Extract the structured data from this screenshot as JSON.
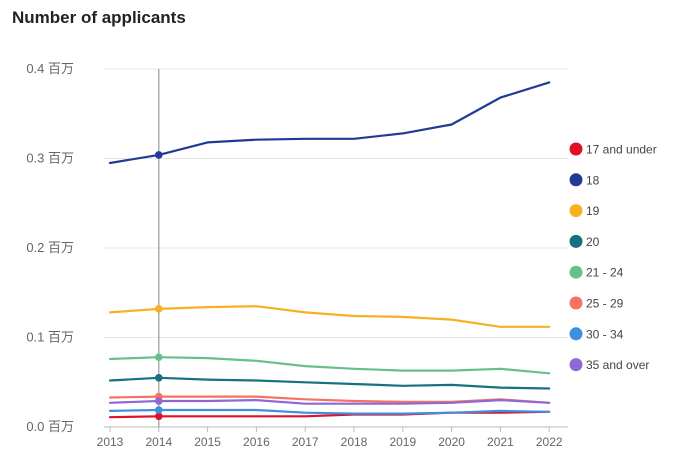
{
  "chart_data": {
    "type": "line",
    "title": "Number of applicants",
    "xlabel": "",
    "ylabel": "",
    "x": [
      "2013",
      "2014",
      "2015",
      "2016",
      "2017",
      "2018",
      "2019",
      "2020",
      "2021",
      "2022"
    ],
    "ylim": [
      0,
      0.4
    ],
    "yticks": [
      {
        "value": 0.0,
        "label": "0.0 百万"
      },
      {
        "value": 0.1,
        "label": "0.1 百万"
      },
      {
        "value": 0.2,
        "label": "0.2 百万"
      },
      {
        "value": 0.3,
        "label": "0.3 百万"
      },
      {
        "value": 0.4,
        "label": "0.4 百万"
      }
    ],
    "grid": "horizontal",
    "legend": "right",
    "hover_index": 1,
    "series": [
      {
        "name": "17 and under",
        "color": "#e0102a",
        "values": [
          0.011,
          0.012,
          0.012,
          0.012,
          0.012,
          0.014,
          0.014,
          0.016,
          0.016,
          0.017
        ]
      },
      {
        "name": "18",
        "color": "#233a95",
        "values": [
          0.295,
          0.304,
          0.318,
          0.321,
          0.322,
          0.322,
          0.328,
          0.338,
          0.368,
          0.385
        ]
      },
      {
        "name": "19",
        "color": "#f7b022",
        "values": [
          0.128,
          0.132,
          0.134,
          0.135,
          0.128,
          0.124,
          0.123,
          0.12,
          0.112,
          0.112
        ]
      },
      {
        "name": "20",
        "color": "#177180",
        "values": [
          0.052,
          0.055,
          0.053,
          0.052,
          0.05,
          0.048,
          0.046,
          0.047,
          0.044,
          0.043
        ]
      },
      {
        "name": "21 - 24",
        "color": "#67bf8b",
        "values": [
          0.076,
          0.078,
          0.077,
          0.074,
          0.068,
          0.065,
          0.063,
          0.063,
          0.065,
          0.06
        ]
      },
      {
        "name": "25 - 29",
        "color": "#f57262",
        "values": [
          0.033,
          0.034,
          0.034,
          0.034,
          0.031,
          0.029,
          0.028,
          0.028,
          0.031,
          0.027
        ]
      },
      {
        "name": "30 - 34",
        "color": "#3d8fe0",
        "values": [
          0.018,
          0.019,
          0.019,
          0.019,
          0.016,
          0.015,
          0.015,
          0.016,
          0.018,
          0.017
        ]
      },
      {
        "name": "35 and over",
        "color": "#9167d4",
        "values": [
          0.027,
          0.029,
          0.029,
          0.03,
          0.026,
          0.026,
          0.026,
          0.027,
          0.03,
          0.027
        ]
      }
    ]
  }
}
